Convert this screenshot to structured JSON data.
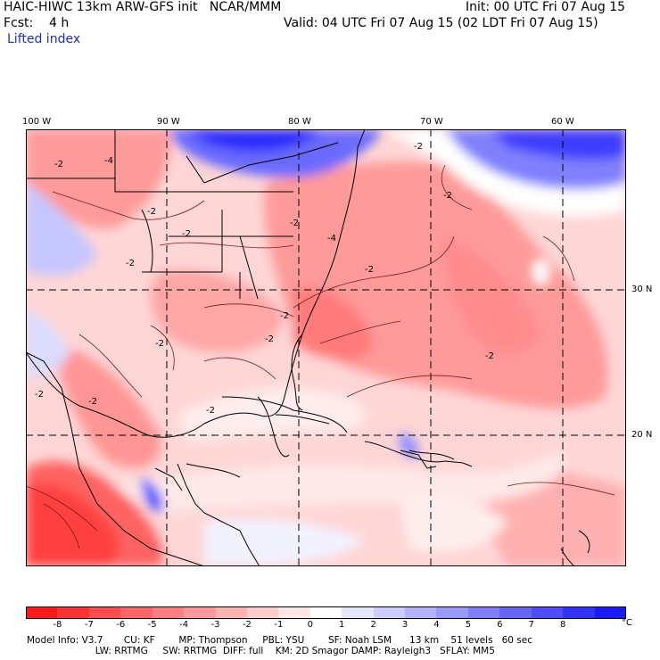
{
  "header": {
    "model": "HAIC-HIWC 13km ARW-GFS init   NCAR/MMM",
    "init": "Init: 00 UTC Fri 07 Aug 15",
    "fcst": "Fcst:    4 h",
    "valid": "Valid: 04 UTC Fri 07 Aug 15 (02 LDT Fri 07 Aug 15)",
    "field": "Lifted index"
  },
  "lon_labels": [
    "100 W",
    "90 W",
    "80 W",
    "70 W",
    "60 W"
  ],
  "lat_labels": [
    "30 N",
    "20 N"
  ],
  "contour_labels": [
    "-2",
    "-4",
    "-2",
    "-2",
    "-2",
    "-2",
    "-4",
    "-2",
    "-2",
    "-2",
    "-2",
    "-2",
    "-2",
    "-2",
    "-2",
    "-2",
    "-2"
  ],
  "colorbar": {
    "ticks": [
      "-8",
      "-7",
      "-6",
      "-5",
      "-4",
      "-3",
      "-2",
      "-1",
      "0",
      "1",
      "2",
      "3",
      "4",
      "5",
      "6",
      "7",
      "8"
    ],
    "unit": "°C",
    "colors": [
      "#ff1a1a",
      "#ff3333",
      "#ff4d4d",
      "#ff6666",
      "#ff8080",
      "#ff9999",
      "#ffb3b3",
      "#ffcccc",
      "#ffe6e6",
      "#ffffff",
      "#e6e6ff",
      "#ccccff",
      "#b3b3ff",
      "#9999ff",
      "#8080ff",
      "#6666ff",
      "#4d4dff",
      "#3333ff",
      "#1a1aff"
    ]
  },
  "model_info": {
    "line1": "Model Info: V3.7       CU: KF        MP: Thompson     PBL: YSU        SF: Noah LSM      13 km    51 levels   60 sec",
    "line2": "                       LW: RRTMG     SW: RRTMG  DIFF: full    KM: 2D Smagor DAMP: Rayleigh3   SFLAY: MM5"
  }
}
